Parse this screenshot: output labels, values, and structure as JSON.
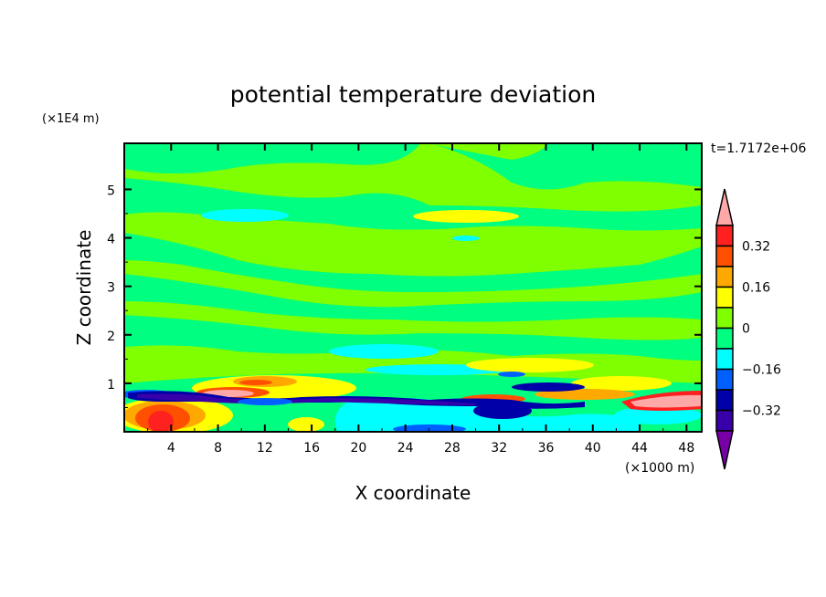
{
  "chart_data": {
    "type": "heatmap",
    "title": "potential temperature deviation",
    "xlabel": "X coordinate",
    "ylabel": "Z coordinate",
    "x_unit": "(×1000 m)",
    "y_unit": "(×1E4 m)",
    "time_label": "t=1.7172e+06",
    "xlim": [
      0,
      49.3
    ],
    "ylim": [
      0,
      5.95
    ],
    "x_ticks": [
      4,
      8,
      12,
      16,
      20,
      24,
      28,
      32,
      36,
      40,
      44,
      48
    ],
    "x_tick_labels": [
      "4",
      "8",
      "12",
      "16",
      "20",
      "24",
      "28",
      "32",
      "36",
      "40",
      "44",
      "48"
    ],
    "y_ticks": [
      1,
      2,
      3,
      4,
      5
    ],
    "y_tick_labels": [
      "1",
      "2",
      "3",
      "4",
      "5"
    ],
    "colorbar": {
      "levels": [
        0.4,
        0.32,
        0.24,
        0.16,
        0.08,
        0,
        -0.08,
        -0.16,
        -0.24,
        -0.32,
        -0.4
      ],
      "colors": [
        "#ff2020",
        "#ff5000",
        "#ffa800",
        "#ffff00",
        "#80ff00",
        "#00ff80",
        "#00ffff",
        "#0060ff",
        "#0000a8",
        "#3800a8"
      ],
      "over_color": "#ffa8a8",
      "under_color": "#7800a8",
      "labels": [
        {
          "value": 0.32,
          "text": "0.32"
        },
        {
          "value": 0.16,
          "text": "0.16"
        },
        {
          "value": 0,
          "text": "0"
        },
        {
          "value": -0.16,
          "text": "−0.16"
        },
        {
          "value": -0.32,
          "text": "−0.32"
        }
      ]
    }
  }
}
